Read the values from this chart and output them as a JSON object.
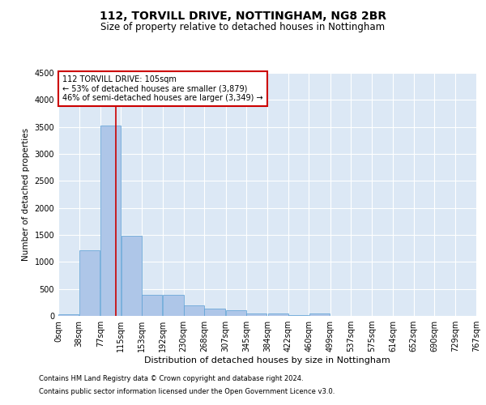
{
  "title1": "112, TORVILL DRIVE, NOTTINGHAM, NG8 2BR",
  "title2": "Size of property relative to detached houses in Nottingham",
  "xlabel": "Distribution of detached houses by size in Nottingham",
  "ylabel": "Number of detached properties",
  "footnote1": "Contains HM Land Registry data © Crown copyright and database right 2024.",
  "footnote2": "Contains public sector information licensed under the Open Government Licence v3.0.",
  "annotation_title": "112 TORVILL DRIVE: 105sqm",
  "annotation_line1": "← 53% of detached houses are smaller (3,879)",
  "annotation_line2": "46% of semi-detached houses are larger (3,349) →",
  "property_size": 105,
  "bin_edges": [
    0,
    38,
    77,
    115,
    153,
    192,
    230,
    268,
    307,
    345,
    384,
    422,
    460,
    499,
    537,
    575,
    614,
    652,
    690,
    729,
    767
  ],
  "bar_heights": [
    30,
    1220,
    3530,
    1480,
    390,
    390,
    200,
    130,
    100,
    50,
    50,
    10,
    50,
    0,
    0,
    0,
    0,
    0,
    0,
    0
  ],
  "bar_color": "#aec6e8",
  "bar_edge_color": "#5a9fd4",
  "bg_color": "#dce8f5",
  "grid_color": "white",
  "vline_color": "#cc0000",
  "ylim_max": 4500,
  "yticks": [
    0,
    500,
    1000,
    1500,
    2000,
    2500,
    3000,
    3500,
    4000,
    4500
  ],
  "title1_fontsize": 10,
  "title2_fontsize": 8.5,
  "xlabel_fontsize": 8,
  "ylabel_fontsize": 7.5,
  "tick_fontsize": 7,
  "annotation_fontsize": 7,
  "footnote_fontsize": 6
}
